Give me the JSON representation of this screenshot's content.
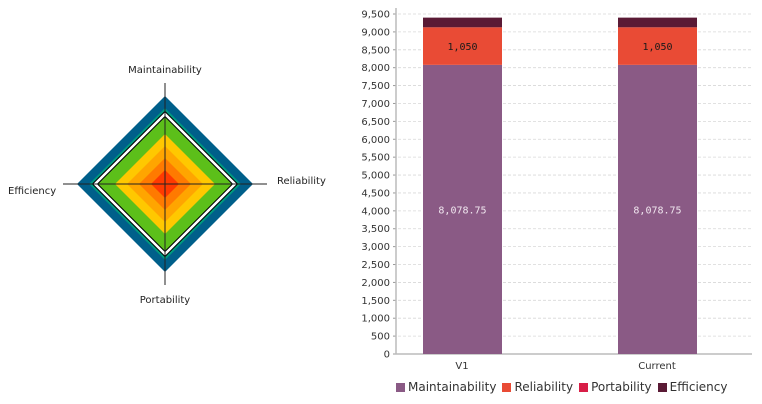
{
  "chart_data": [
    {
      "type": "radar",
      "axes": [
        "Maintainability",
        "Reliability",
        "Portability",
        "Efficiency"
      ],
      "band_colors": [
        "#005f8a",
        "#009a7f",
        "#5cbf1a",
        "#ffc800",
        "#ffa500",
        "#ff7a00",
        "#ff3a00"
      ],
      "series_outline_color": "#000000"
    },
    {
      "type": "bar",
      "stacked": true,
      "categories": [
        "V1",
        "Current"
      ],
      "series": [
        {
          "name": "Maintainability",
          "color": "#8a5a85",
          "values": [
            8078.75,
            8078.75
          ],
          "labels": [
            "8,078.75",
            "8,078.75"
          ]
        },
        {
          "name": "Reliability",
          "color": "#e94b35",
          "values": [
            1050,
            1050
          ],
          "labels": [
            "1,050",
            "1,050"
          ]
        },
        {
          "name": "Portability",
          "color": "#d81e47",
          "values": [
            0,
            0
          ]
        },
        {
          "name": "Efficiency",
          "color": "#5a1a35",
          "values": [
            270,
            270
          ]
        }
      ],
      "ylim": [
        0,
        9500
      ],
      "yticks": [
        "0",
        "500",
        "1,000",
        "1,500",
        "2,000",
        "2,500",
        "3,000",
        "3,500",
        "4,000",
        "4,500",
        "5,000",
        "5,500",
        "6,000",
        "6,500",
        "7,000",
        "7,500",
        "8,000",
        "8,500",
        "9,000",
        "9,500"
      ],
      "ytick_values": [
        0,
        500,
        1000,
        1500,
        2000,
        2500,
        3000,
        3500,
        4000,
        4500,
        5000,
        5500,
        6000,
        6500,
        7000,
        7500,
        8000,
        8500,
        9000,
        9500
      ],
      "grid": true,
      "legend": "bottom"
    }
  ]
}
